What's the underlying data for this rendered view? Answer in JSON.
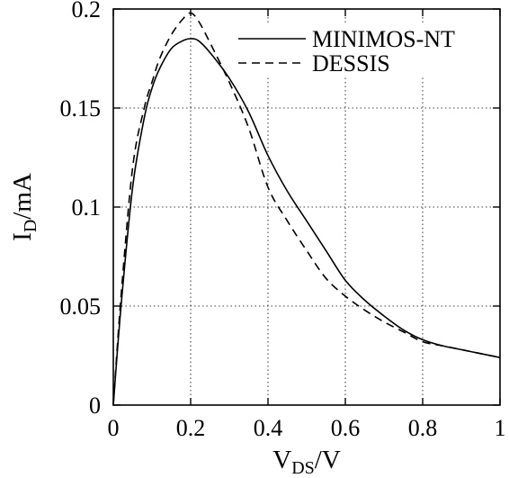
{
  "chart_data": {
    "type": "line",
    "title": "",
    "xlabel": {
      "main": "V",
      "sub": "DS",
      "unit": "/V"
    },
    "ylabel": {
      "main": "I",
      "sub": "D",
      "unit": "/mA"
    },
    "xlim": [
      0,
      1
    ],
    "ylim": [
      0,
      0.2
    ],
    "xticks": [
      0,
      0.2,
      0.4,
      0.6,
      0.8,
      1
    ],
    "xtick_labels": [
      "0",
      "0.2",
      "0.4",
      "0.6",
      "0.8",
      "1"
    ],
    "yticks": [
      0,
      0.05,
      0.1,
      0.15,
      0.2
    ],
    "ytick_labels": [
      "0",
      "0.05",
      "0.1",
      "0.15",
      "0.2"
    ],
    "grid": true,
    "legend_position": "top-right",
    "series": [
      {
        "name": "MINIMOS-NT",
        "style": "solid",
        "x": [
          0,
          0.02,
          0.05,
          0.08,
          0.1,
          0.12,
          0.15,
          0.18,
          0.2,
          0.22,
          0.25,
          0.3,
          0.35,
          0.4,
          0.45,
          0.5,
          0.55,
          0.6,
          0.65,
          0.7,
          0.75,
          0.8,
          0.85,
          0.9,
          0.95,
          1.0
        ],
        "y": [
          0,
          0.05,
          0.11,
          0.145,
          0.16,
          0.17,
          0.18,
          0.184,
          0.185,
          0.184,
          0.178,
          0.165,
          0.148,
          0.126,
          0.108,
          0.093,
          0.078,
          0.063,
          0.053,
          0.045,
          0.038,
          0.033,
          0.03,
          0.028,
          0.026,
          0.024
        ]
      },
      {
        "name": "DESSIS",
        "style": "dashed",
        "x": [
          0,
          0.02,
          0.05,
          0.08,
          0.1,
          0.12,
          0.15,
          0.18,
          0.2,
          0.22,
          0.25,
          0.3,
          0.35,
          0.4,
          0.45,
          0.5,
          0.55,
          0.6,
          0.65,
          0.7,
          0.75,
          0.8,
          0.85,
          0.9,
          0.95,
          1.0
        ],
        "y": [
          0,
          0.055,
          0.12,
          0.15,
          0.163,
          0.175,
          0.187,
          0.195,
          0.198,
          0.194,
          0.183,
          0.163,
          0.14,
          0.11,
          0.093,
          0.078,
          0.064,
          0.055,
          0.048,
          0.042,
          0.037,
          0.032,
          0.03,
          0.028,
          0.026,
          0.024
        ]
      }
    ]
  }
}
